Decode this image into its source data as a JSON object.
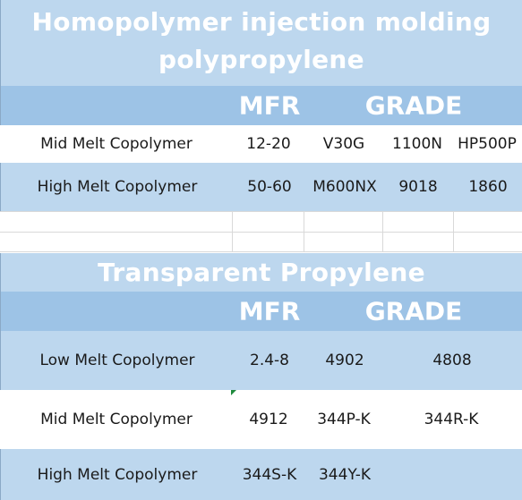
{
  "section1": {
    "title_line1": "Homopolymer injection molding",
    "title_line2": "polypropylene",
    "header": {
      "mfr": "MFR",
      "grade": "GRADE"
    },
    "rows": [
      {
        "label": "Mid Melt Copolymer",
        "mfr": "12-20",
        "grades": [
          "V30G",
          "1100N",
          "HP500P"
        ]
      },
      {
        "label": "High Melt Copolymer",
        "mfr": "50-60",
        "grades": [
          "M600NX",
          "9018",
          "1860"
        ]
      }
    ]
  },
  "section2": {
    "title": "Transparent Propylene",
    "header": {
      "mfr": "MFR",
      "grade": "GRADE"
    },
    "rows": [
      {
        "label": "Low Melt Copolymer",
        "mfr": "2.4-8",
        "grades": [
          "4902",
          "4808"
        ]
      },
      {
        "label": "Mid Melt Copolymer",
        "mfr": "4912",
        "grades": [
          "344P-K",
          "344R-K"
        ]
      },
      {
        "label": "High Melt Copolymer",
        "mfr": "344S-K",
        "grades": [
          "344Y-K"
        ]
      }
    ]
  },
  "colors": {
    "light_blue": "#bdd7ee",
    "mid_blue": "#9dc3e6",
    "white": "#ffffff",
    "marker": "#1e8a3c"
  }
}
